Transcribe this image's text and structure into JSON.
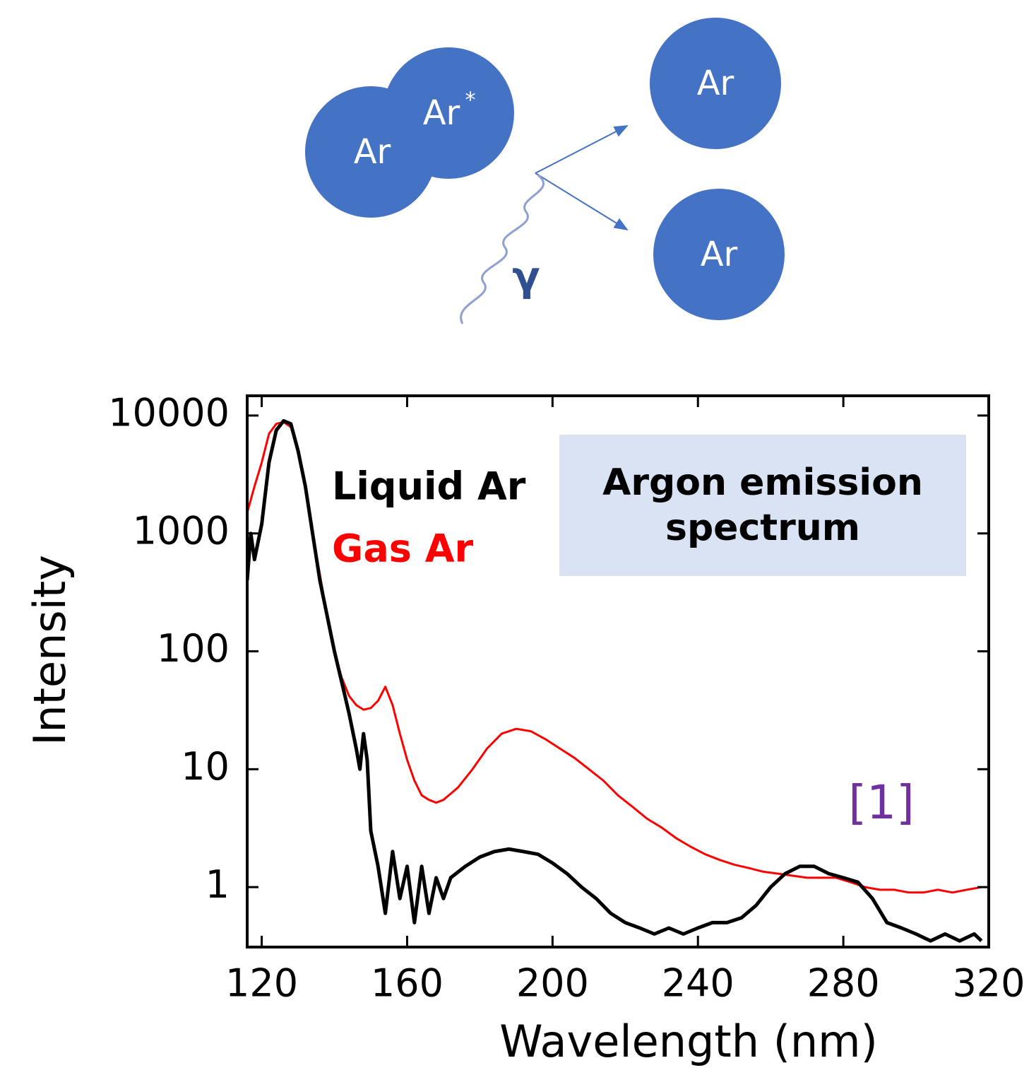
{
  "diagram": {
    "nodes": [
      {
        "label": "Ar"
      },
      {
        "label": "Ar",
        "sup": "*"
      },
      {
        "label": "Ar"
      },
      {
        "label": "Ar"
      }
    ],
    "photon": "γ"
  },
  "chart_data": {
    "type": "line",
    "title": "Argon emission spectrum",
    "x_label": "Wavelength (nm)",
    "y_label": "Intensity",
    "yscale": "log",
    "xlim": [
      116,
      320
    ],
    "ylim": [
      0.31,
      14700
    ],
    "xticks": [
      120,
      160,
      200,
      240,
      280,
      320
    ],
    "yticks": [
      1,
      10,
      100,
      1000,
      10000
    ],
    "annotation": "[1]",
    "annotation_color": "#7030a0",
    "title_box_color": "#dae3f3",
    "series": [
      {
        "name": "Liquid Ar",
        "color": "#000000",
        "x": [
          116,
          117,
          118,
          120,
          122,
          124,
          126,
          128,
          130,
          132,
          134,
          136,
          138,
          140,
          142,
          144,
          146,
          147,
          148,
          149,
          150,
          152,
          154,
          156,
          158,
          160,
          162,
          164,
          166,
          168,
          170,
          172,
          176,
          180,
          184,
          188,
          192,
          196,
          200,
          204,
          208,
          212,
          216,
          220,
          224,
          228,
          232,
          236,
          240,
          244,
          248,
          252,
          256,
          260,
          264,
          268,
          272,
          276,
          280,
          284,
          288,
          292,
          296,
          300,
          304,
          308,
          312,
          316,
          318
        ],
        "values": [
          400,
          1000,
          600,
          1200,
          4000,
          7500,
          9000,
          8500,
          5000,
          2500,
          1000,
          400,
          200,
          100,
          55,
          30,
          15,
          10,
          20,
          12,
          3,
          1.5,
          0.6,
          2,
          0.8,
          1.5,
          0.5,
          1.5,
          0.6,
          1.2,
          0.8,
          1.2,
          1.5,
          1.8,
          2,
          2.1,
          2,
          1.9,
          1.6,
          1.3,
          1.0,
          0.8,
          0.6,
          0.5,
          0.45,
          0.4,
          0.45,
          0.4,
          0.45,
          0.5,
          0.5,
          0.55,
          0.7,
          1.0,
          1.3,
          1.5,
          1.5,
          1.3,
          1.2,
          1.1,
          0.8,
          0.5,
          0.45,
          0.4,
          0.35,
          0.4,
          0.35,
          0.4,
          0.35
        ]
      },
      {
        "name": "Gas Ar",
        "color": "#ff0000",
        "x": [
          116,
          118,
          120,
          122,
          124,
          126,
          128,
          130,
          132,
          134,
          136,
          138,
          140,
          142,
          144,
          146,
          148,
          150,
          152,
          154,
          156,
          158,
          160,
          162,
          164,
          166,
          168,
          170,
          174,
          178,
          182,
          186,
          190,
          194,
          198,
          202,
          206,
          210,
          214,
          218,
          222,
          226,
          230,
          234,
          238,
          242,
          246,
          250,
          254,
          258,
          262,
          266,
          270,
          274,
          278,
          282,
          286,
          290,
          294,
          298,
          302,
          306,
          310,
          314,
          318
        ],
        "values": [
          1500,
          2500,
          4000,
          7000,
          8500,
          8800,
          8000,
          5000,
          2500,
          1000,
          450,
          200,
          100,
          60,
          42,
          35,
          32,
          33,
          38,
          50,
          35,
          20,
          12,
          8,
          6,
          5.5,
          5.2,
          5.5,
          7,
          10,
          15,
          20,
          22,
          21,
          18,
          15,
          12.5,
          10,
          8,
          6,
          4.8,
          3.8,
          3.2,
          2.6,
          2.2,
          1.9,
          1.7,
          1.55,
          1.45,
          1.35,
          1.3,
          1.25,
          1.2,
          1.2,
          1.2,
          1.1,
          1.0,
          0.95,
          0.95,
          0.9,
          0.9,
          0.95,
          0.9,
          0.95,
          1.0
        ]
      }
    ]
  }
}
